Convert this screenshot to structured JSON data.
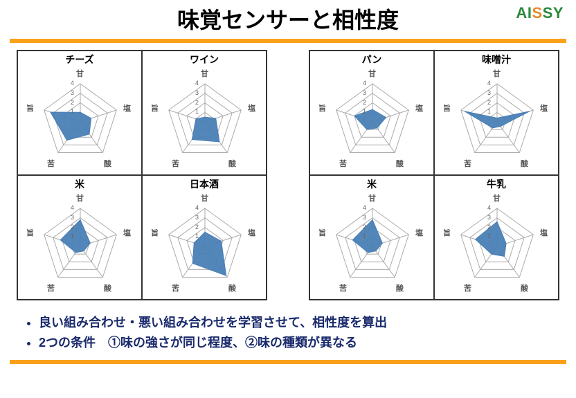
{
  "title": "味覚センサーと相性度",
  "logo": {
    "aiy_letters": "AI",
    "s_letter": "S",
    "y_letters": "SY"
  },
  "rule_color": "#f9a11b",
  "axes": [
    "甘",
    "塩",
    "酸",
    "苦",
    "旨"
  ],
  "radar": {
    "rings": [
      1,
      2,
      3,
      4
    ],
    "max": 4,
    "ring_color": "#aaaaaa",
    "fill_color": "#4a7fb5",
    "fill_opacity": 0.95,
    "axis_label_color": "#555555",
    "scale_label_color": "#666666",
    "cell_border_color": "#333333"
  },
  "groups": [
    {
      "cells": [
        {
          "title": "チーズ",
          "values": [
            1.0,
            1.2,
            1.6,
            2.4,
            3.3
          ]
        },
        {
          "title": "ワイン",
          "values": [
            0.5,
            1.2,
            2.6,
            2.3,
            1.0
          ]
        },
        {
          "title": "米",
          "values": [
            2.8,
            1.1,
            0.6,
            0.8,
            2.2
          ]
        },
        {
          "title": "日本酒",
          "values": [
            1.5,
            1.8,
            3.8,
            2.2,
            1.2
          ]
        }
      ]
    },
    {
      "cells": [
        {
          "title": "パン",
          "values": [
            1.3,
            1.5,
            0.8,
            1.0,
            2.0
          ]
        },
        {
          "title": "味噌汁",
          "values": [
            0.4,
            3.6,
            0.6,
            0.8,
            3.6
          ]
        },
        {
          "title": "米",
          "values": [
            2.8,
            1.1,
            0.6,
            0.8,
            2.2
          ]
        },
        {
          "title": "牛乳",
          "values": [
            2.6,
            1.0,
            1.3,
            1.0,
            2.4
          ]
        }
      ]
    }
  ],
  "bullets": [
    "良い組み合わせ・悪い組み合わせを学習させて、相性度を算出",
    "2つの条件　①味の強さが同じ程度、②味の種類が異なる"
  ]
}
